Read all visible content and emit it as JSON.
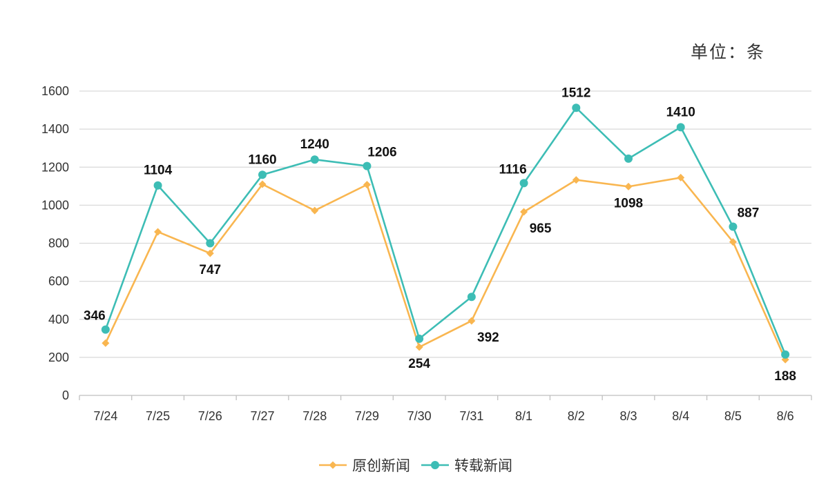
{
  "unit_label": "单位：条",
  "colors": {
    "original": "#F9B650",
    "reposted": "#3DBDB5",
    "grid": "#D9D9D9",
    "axis": "#BFBFBF"
  },
  "chart_data": {
    "type": "line",
    "title": "",
    "xlabel": "",
    "ylabel": "",
    "ylim": [
      0,
      1600
    ],
    "yticks": [
      0,
      200,
      400,
      600,
      800,
      1000,
      1200,
      1400,
      1600
    ],
    "grid": true,
    "legend_position": "bottom-center",
    "categories": [
      "7/24",
      "7/25",
      "7/26",
      "7/27",
      "7/28",
      "7/29",
      "7/30",
      "7/31",
      "8/1",
      "8/2",
      "8/3",
      "8/4",
      "8/5",
      "8/6"
    ],
    "series": [
      {
        "name": "原创新闻",
        "color": "#F9B650",
        "marker": "diamond",
        "values": [
          275,
          860,
          747,
          1110,
          972,
          1108,
          254,
          392,
          965,
          1133,
          1098,
          1145,
          807,
          188
        ]
      },
      {
        "name": "转载新闻",
        "color": "#3DBDB5",
        "marker": "circle",
        "values": [
          346,
          1104,
          800,
          1160,
          1240,
          1206,
          298,
          518,
          1116,
          1512,
          1245,
          1410,
          887,
          215
        ]
      }
    ],
    "annotations": [
      {
        "series": 1,
        "index": 0,
        "text": "346",
        "pos": "above-left"
      },
      {
        "series": 1,
        "index": 1,
        "text": "1104",
        "pos": "above"
      },
      {
        "series": 0,
        "index": 2,
        "text": "747",
        "pos": "below"
      },
      {
        "series": 1,
        "index": 3,
        "text": "1160",
        "pos": "above"
      },
      {
        "series": 1,
        "index": 4,
        "text": "1240",
        "pos": "above"
      },
      {
        "series": 1,
        "index": 5,
        "text": "1206",
        "pos": "above-right"
      },
      {
        "series": 0,
        "index": 6,
        "text": "254",
        "pos": "below"
      },
      {
        "series": 0,
        "index": 7,
        "text": "392",
        "pos": "below-right"
      },
      {
        "series": 1,
        "index": 8,
        "text": "1116",
        "pos": "above-left"
      },
      {
        "series": 0,
        "index": 8,
        "text": "965",
        "pos": "below-right"
      },
      {
        "series": 1,
        "index": 9,
        "text": "1512",
        "pos": "above"
      },
      {
        "series": 0,
        "index": 10,
        "text": "1098",
        "pos": "below"
      },
      {
        "series": 1,
        "index": 11,
        "text": "1410",
        "pos": "above"
      },
      {
        "series": 1,
        "index": 12,
        "text": "887",
        "pos": "above-right"
      },
      {
        "series": 0,
        "index": 13,
        "text": "188",
        "pos": "below"
      }
    ]
  }
}
